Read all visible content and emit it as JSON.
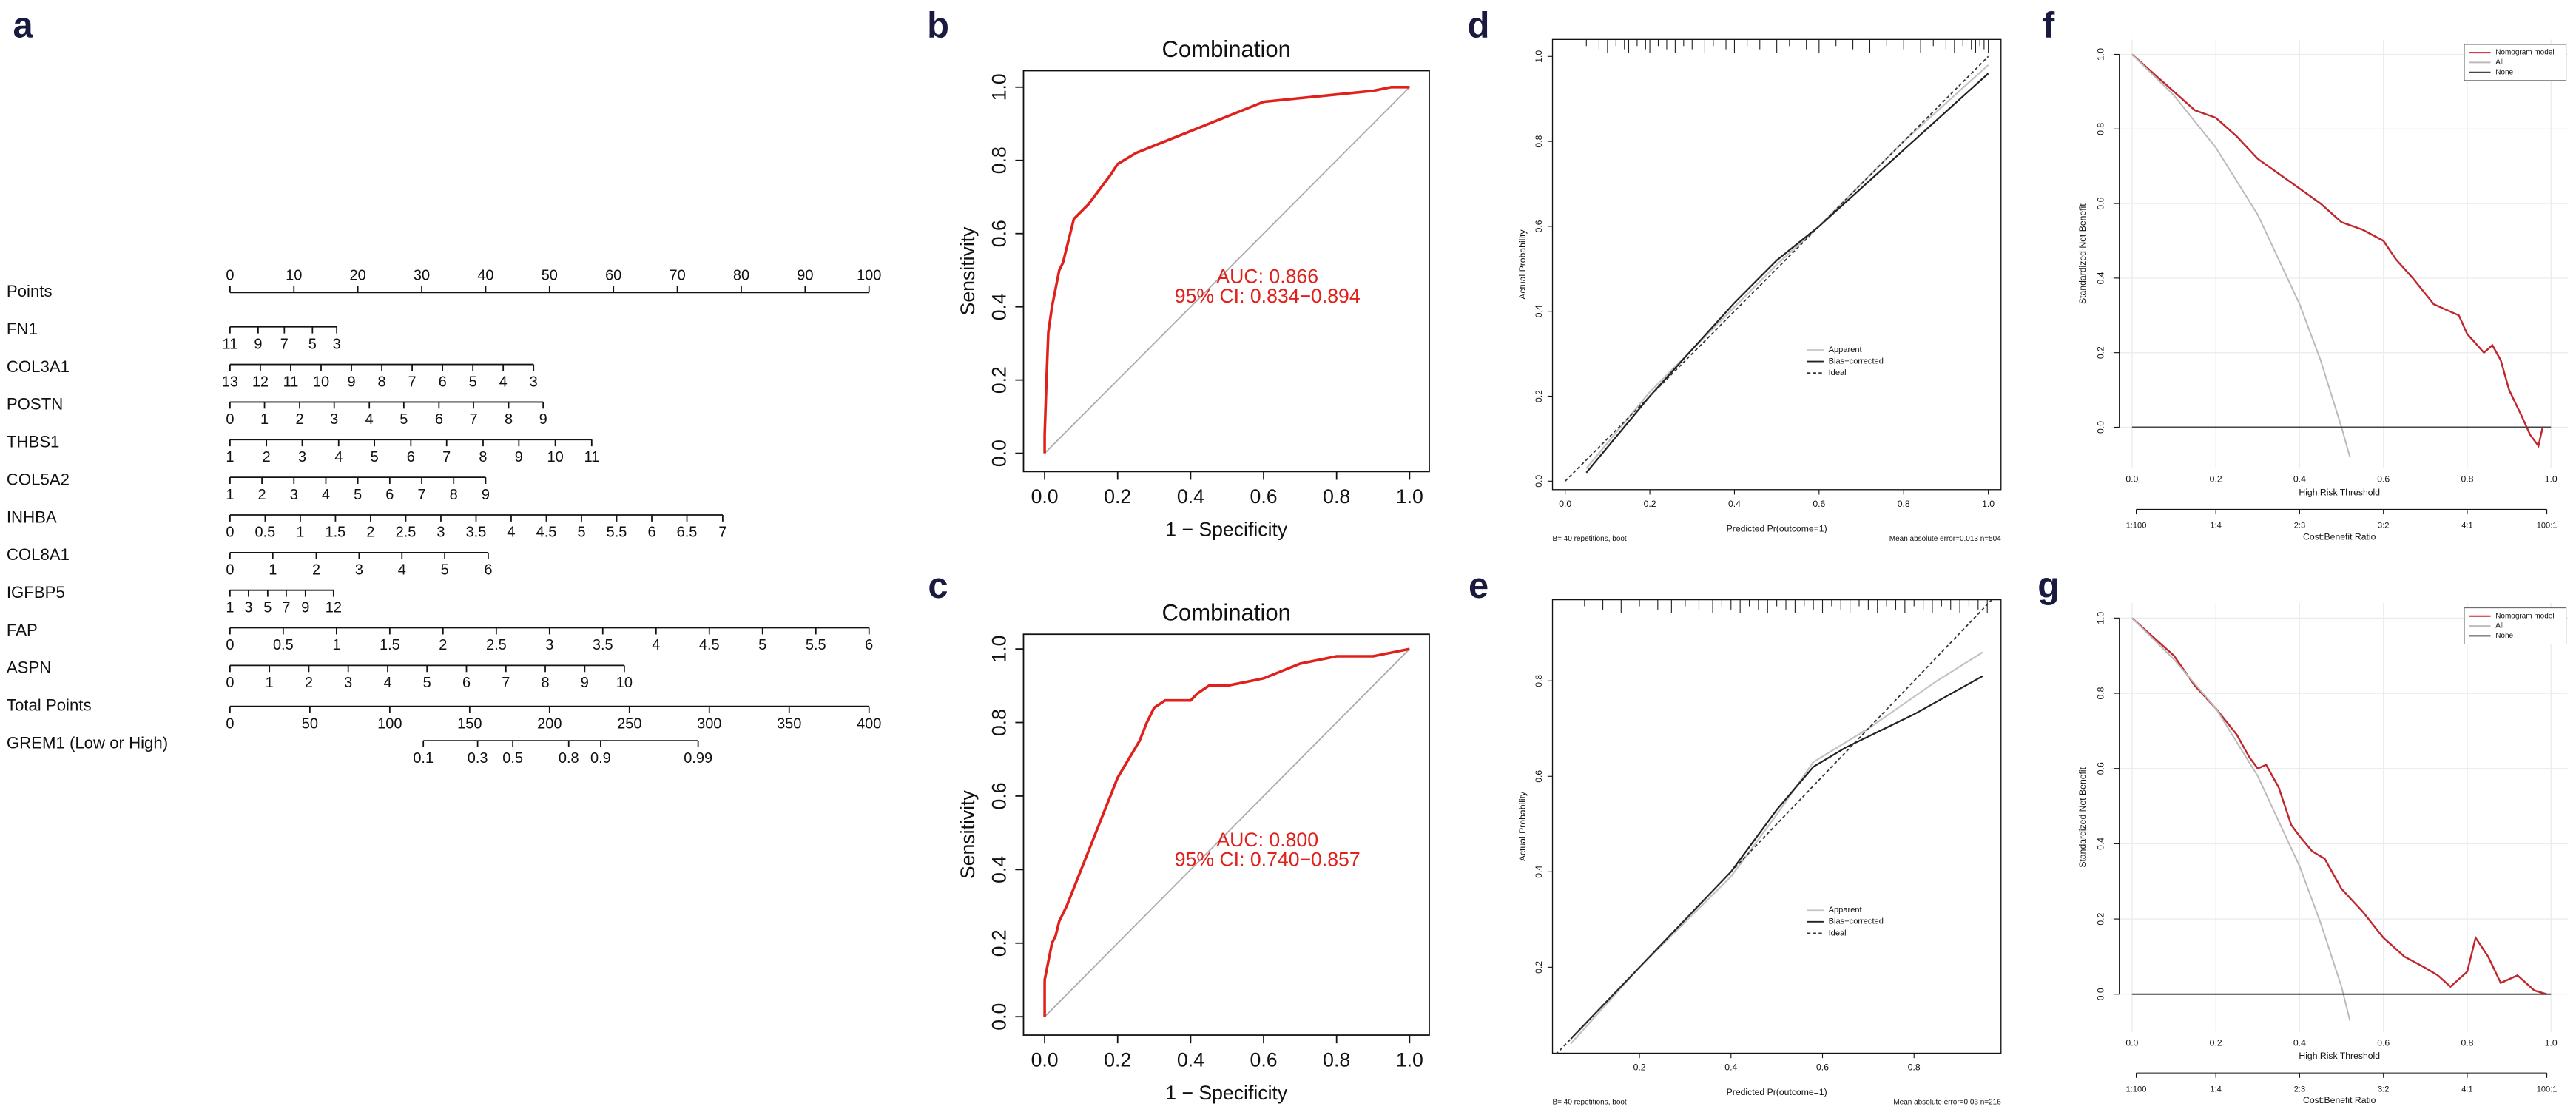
{
  "chart_data": [
    {
      "type": "nomogram",
      "panel_label": "a",
      "rows": [
        {
          "name": "Points",
          "xlim": [
            0,
            100
          ],
          "ticks": [
            0,
            10,
            20,
            30,
            40,
            50,
            60,
            70,
            80,
            90,
            100
          ]
        },
        {
          "name": "FN1",
          "ticks": [
            11,
            9,
            7,
            5,
            3
          ],
          "tick_points": [
            0,
            4.4,
            8.5,
            12.9,
            16.7
          ]
        },
        {
          "name": "COL3A1",
          "ticks": [
            13,
            12,
            11,
            10,
            9,
            8,
            7,
            6,
            5,
            4,
            3
          ],
          "tick_points": [
            0,
            4.75,
            9.5,
            14.25,
            19,
            23.75,
            28.5,
            33.25,
            38,
            42.75,
            47.5
          ]
        },
        {
          "name": "POSTN",
          "ticks": [
            0,
            1,
            2,
            3,
            4,
            5,
            6,
            7,
            8,
            9
          ],
          "tick_points": [
            0,
            5.4,
            10.9,
            16.3,
            21.8,
            27.2,
            32.7,
            38.1,
            43.6,
            49.0
          ]
        },
        {
          "name": "THBS1",
          "ticks": [
            1,
            2,
            3,
            4,
            5,
            6,
            7,
            8,
            9,
            10,
            11
          ],
          "tick_points": [
            0,
            5.7,
            11.3,
            17,
            22.6,
            28.3,
            33.9,
            39.6,
            45.2,
            50.9,
            56.6
          ]
        },
        {
          "name": "COL5A2",
          "ticks": [
            1,
            2,
            3,
            4,
            5,
            6,
            7,
            8,
            9
          ],
          "tick_points": [
            0,
            5,
            10,
            15,
            20,
            25,
            30,
            35,
            40
          ]
        },
        {
          "name": "INHBA",
          "ticks": [
            0,
            0.5,
            1,
            1.5,
            2,
            2.5,
            3,
            3.5,
            4,
            4.5,
            5,
            5.5,
            6,
            6.5,
            7
          ],
          "tick_points": [
            0,
            5.5,
            11,
            16.5,
            22,
            27.5,
            33,
            38.5,
            44,
            49.5,
            55,
            60.5,
            66,
            71.5,
            77.1
          ]
        },
        {
          "name": "COL8A1",
          "ticks": [
            0,
            1,
            2,
            3,
            4,
            5,
            6
          ],
          "tick_points": [
            0,
            6.7,
            13.5,
            20.2,
            26.9,
            33.6,
            40.4
          ]
        },
        {
          "name": "IGFBP5",
          "ticks": [
            1,
            3,
            5,
            7,
            9,
            12
          ],
          "tick_points": [
            0,
            2.9,
            5.9,
            8.8,
            11.8,
            16.2
          ]
        },
        {
          "name": "FAP",
          "ticks": [
            0,
            0.5,
            1,
            1.5,
            2,
            2.5,
            3,
            3.5,
            4,
            4.5,
            5,
            5.5,
            6
          ],
          "tick_points": [
            0,
            8.33,
            16.67,
            25,
            33.33,
            41.67,
            50,
            58.33,
            66.67,
            75,
            83.33,
            91.67,
            100
          ]
        },
        {
          "name": "ASPN",
          "ticks": [
            0,
            1,
            2,
            3,
            4,
            5,
            6,
            7,
            8,
            9,
            10
          ],
          "tick_points": [
            0,
            6.17,
            12.33,
            18.5,
            24.67,
            30.83,
            37,
            43.17,
            49.33,
            55.5,
            61.7
          ]
        },
        {
          "name": "Total Points",
          "xlim": [
            0,
            400
          ],
          "ticks": [
            0,
            50,
            100,
            150,
            200,
            250,
            300,
            350,
            400
          ]
        },
        {
          "name": "GREM1 (Low or High)",
          "ticks": [
            0.1,
            0.3,
            0.5,
            0.8,
            0.9,
            0.99
          ],
          "tick_points": [
            121,
            155,
            177,
            212,
            232,
            293
          ]
        }
      ]
    },
    {
      "type": "roc",
      "panel_label": "b",
      "title": "Combination",
      "x_label": "1 − Specificity",
      "y_label": "Sensitivity",
      "xlim": [
        -0.058,
        1.054
      ],
      "ylim": [
        -0.05,
        1.045
      ],
      "xticks": [
        {
          "value": 0,
          "label": "0.0"
        },
        0.2,
        0.4,
        0.6,
        0.8,
        {
          "value": 1,
          "label": "1.0"
        }
      ],
      "yticks": [
        {
          "value": 0,
          "label": "0.0"
        },
        0.2,
        0.4,
        0.6,
        0.8,
        {
          "value": 1,
          "label": "1.0"
        }
      ],
      "annotations": [
        "AUC: 0.866",
        "95% CI: 0.834−0.894"
      ],
      "annotation_color": "#e0201b",
      "reference_color": "#aaaaaa",
      "series": [
        {
          "color": "#e0201b",
          "x": [
            0,
            0,
            0.005,
            0.01,
            0.02,
            0.03,
            0.04,
            0.05,
            0.06,
            0.07,
            0.08,
            0.1,
            0.12,
            0.15,
            0.18,
            0.2,
            0.25,
            0.3,
            0.35,
            0.4,
            0.45,
            0.5,
            0.55,
            0.6,
            0.7,
            0.8,
            0.9,
            0.95,
            1
          ],
          "values": [
            0,
            0.05,
            0.2,
            0.33,
            0.4,
            0.45,
            0.5,
            0.52,
            0.56,
            0.6,
            0.64,
            0.66,
            0.68,
            0.72,
            0.76,
            0.79,
            0.82,
            0.84,
            0.86,
            0.88,
            0.9,
            0.92,
            0.94,
            0.96,
            0.97,
            0.98,
            0.99,
            1.0,
            1.0
          ]
        }
      ]
    },
    {
      "type": "roc",
      "panel_label": "c",
      "title": "Combination",
      "x_label": "1 − Specificity",
      "y_label": "Sensitivity",
      "xlim": [
        -0.058,
        1.054
      ],
      "ylim": [
        -0.05,
        1.04
      ],
      "xticks": [
        {
          "value": 0,
          "label": "0.0"
        },
        0.2,
        0.4,
        0.6,
        0.8,
        {
          "value": 1,
          "label": "1.0"
        }
      ],
      "yticks": [
        {
          "value": 0,
          "label": "0.0"
        },
        0.2,
        0.4,
        0.6,
        0.8,
        {
          "value": 1,
          "label": "1.0"
        }
      ],
      "annotations": [
        "AUC: 0.800",
        "95% CI: 0.740−0.857"
      ],
      "annotation_color": "#e0201b",
      "reference_color": "#aaaaaa",
      "series": [
        {
          "color": "#e0201b",
          "x": [
            0,
            0,
            0.01,
            0.02,
            0.03,
            0.04,
            0.06,
            0.08,
            0.1,
            0.12,
            0.14,
            0.16,
            0.18,
            0.2,
            0.23,
            0.26,
            0.28,
            0.3,
            0.33,
            0.4,
            0.42,
            0.45,
            0.5,
            0.55,
            0.6,
            0.7,
            0.8,
            0.9,
            0.95,
            1
          ],
          "values": [
            0,
            0.1,
            0.15,
            0.2,
            0.22,
            0.26,
            0.3,
            0.35,
            0.4,
            0.45,
            0.5,
            0.55,
            0.6,
            0.65,
            0.7,
            0.75,
            0.8,
            0.84,
            0.86,
            0.86,
            0.88,
            0.9,
            0.9,
            0.91,
            0.92,
            0.96,
            0.98,
            0.98,
            0.99,
            1.0
          ]
        }
      ]
    },
    {
      "type": "calibration",
      "panel_label": "d",
      "x_label": "Predicted Pr(outcome=1)",
      "y_label": "Actual Probability",
      "note_left": "B= 40 repetitions, boot",
      "note_right": "Mean absolute error=0.013 n=504",
      "xlim": [
        -0.03,
        1.03
      ],
      "ylim": [
        -0.02,
        1.04
      ],
      "xticks": [
        {
          "value": 0,
          "label": "0.0"
        },
        0.2,
        0.4,
        0.6,
        0.8,
        {
          "value": 1,
          "label": "1.0"
        }
      ],
      "yticks": [
        {
          "value": 0,
          "label": "0.0"
        },
        0.2,
        0.4,
        0.6,
        0.8,
        {
          "value": 1,
          "label": "1.0"
        }
      ],
      "rug": [
        0.05,
        0.08,
        0.1,
        0.12,
        0.14,
        0.15,
        0.17,
        0.19,
        0.2,
        0.22,
        0.24,
        0.26,
        0.28,
        0.3,
        0.33,
        0.35,
        0.38,
        0.4,
        0.43,
        0.46,
        0.5,
        0.53,
        0.57,
        0.6,
        0.64,
        0.68,
        0.72,
        0.76,
        0.8,
        0.84,
        0.87,
        0.9,
        0.92,
        0.94,
        0.96,
        0.97,
        0.98,
        0.99,
        1.0
      ],
      "series": [
        {
          "name": "Apparent",
          "color": "#c4c4c4",
          "x": [
            0.05,
            0.2,
            0.4,
            0.5,
            0.6,
            0.8,
            1.0
          ],
          "values": [
            0.03,
            0.21,
            0.41,
            0.51,
            0.6,
            0.8,
            0.98
          ]
        },
        {
          "name": "Bias−corrected",
          "color": "#222222",
          "x": [
            0.05,
            0.2,
            0.4,
            0.5,
            0.6,
            0.8,
            1.0
          ],
          "values": [
            0.02,
            0.2,
            0.42,
            0.52,
            0.6,
            0.78,
            0.96
          ]
        },
        {
          "name": "Ideal",
          "color": "#333333",
          "dashed": true,
          "x": [
            0,
            1
          ],
          "values": [
            0,
            1
          ]
        }
      ]
    },
    {
      "type": "calibration",
      "panel_label": "e",
      "x_label": "Predicted Pr(outcome=1)",
      "y_label": "Actual Probability",
      "note_left": "B= 40 repetitions, boot",
      "note_right": "Mean absolute error=0.03 n=216",
      "xlim": [
        0.01,
        0.99
      ],
      "ylim": [
        0.02,
        0.97
      ],
      "xticks": [
        0.2,
        0.4,
        0.6,
        0.8
      ],
      "yticks": [
        0.2,
        0.4,
        0.6,
        0.8
      ],
      "rug": [
        0.08,
        0.12,
        0.16,
        0.2,
        0.24,
        0.27,
        0.3,
        0.33,
        0.36,
        0.38,
        0.4,
        0.42,
        0.44,
        0.46,
        0.48,
        0.5,
        0.52,
        0.54,
        0.56,
        0.58,
        0.6,
        0.62,
        0.64,
        0.66,
        0.68,
        0.7,
        0.72,
        0.74,
        0.76,
        0.78,
        0.8,
        0.82,
        0.84,
        0.86,
        0.88,
        0.9,
        0.92,
        0.94,
        0.96
      ],
      "series": [
        {
          "name": "Apparent",
          "color": "#c4c4c4",
          "x": [
            0.05,
            0.2,
            0.4,
            0.5,
            0.58,
            0.7,
            0.85,
            0.95
          ],
          "values": [
            0.04,
            0.2,
            0.39,
            0.52,
            0.63,
            0.7,
            0.8,
            0.86
          ]
        },
        {
          "name": "Bias−corrected",
          "color": "#222222",
          "x": [
            0.05,
            0.2,
            0.4,
            0.5,
            0.58,
            0.65,
            0.8,
            0.95
          ],
          "values": [
            0.05,
            0.2,
            0.4,
            0.53,
            0.62,
            0.66,
            0.73,
            0.81
          ]
        },
        {
          "name": "Ideal",
          "color": "#333333",
          "dashed": true,
          "x": [
            0,
            1
          ],
          "values": [
            0,
            1
          ]
        }
      ]
    },
    {
      "type": "dca",
      "panel_label": "f",
      "x_label": "High Risk Threshold",
      "y_label": "Standardized Net Benefit",
      "x2_label": "Cost:Benefit Ratio",
      "grid": true,
      "xlim": [
        -0.05,
        1.04
      ],
      "ylim": [
        -0.11,
        1.04
      ],
      "xticks": [
        {
          "value": 0,
          "label": "0.0"
        },
        0.2,
        0.4,
        0.6,
        0.8,
        {
          "value": 1,
          "label": "1.0"
        }
      ],
      "yticks": [
        {
          "value": 0,
          "label": "0.0"
        },
        0.2,
        0.4,
        0.6,
        0.8,
        {
          "value": 1,
          "label": "1.0"
        }
      ],
      "x2ticks": [
        {
          "value": 0.01,
          "label": "1:100"
        },
        {
          "value": 0.2,
          "label": "1:4"
        },
        {
          "value": 0.4,
          "label": "2:3"
        },
        {
          "value": 0.6,
          "label": "3:2"
        },
        {
          "value": 0.8,
          "label": "4:1"
        },
        {
          "value": 0.99,
          "label": "100:1"
        }
      ],
      "series": [
        {
          "name": "Nomogram model",
          "color": "#c0272d",
          "x": [
            0,
            0.05,
            0.1,
            0.15,
            0.2,
            0.25,
            0.3,
            0.35,
            0.4,
            0.45,
            0.5,
            0.55,
            0.6,
            0.63,
            0.67,
            0.72,
            0.78,
            0.8,
            0.84,
            0.86,
            0.88,
            0.9,
            0.93,
            0.95,
            0.97,
            0.98
          ],
          "values": [
            1.0,
            0.95,
            0.9,
            0.85,
            0.83,
            0.78,
            0.72,
            0.68,
            0.64,
            0.6,
            0.55,
            0.53,
            0.5,
            0.45,
            0.4,
            0.33,
            0.3,
            0.25,
            0.2,
            0.22,
            0.18,
            0.1,
            0.03,
            -0.02,
            -0.05,
            0.0
          ]
        },
        {
          "name": "All",
          "color": "#bbbbbb",
          "x": [
            0,
            0.1,
            0.2,
            0.3,
            0.4,
            0.45,
            0.5,
            0.52
          ],
          "values": [
            1.0,
            0.89,
            0.75,
            0.57,
            0.33,
            0.18,
            0.0,
            -0.08
          ]
        },
        {
          "name": "None",
          "color": "#444444",
          "x": [
            0,
            1
          ],
          "values": [
            0,
            0
          ]
        }
      ]
    },
    {
      "type": "dca",
      "panel_label": "g",
      "x_label": "High Risk Threshold",
      "y_label": "Standardized Net Benefit",
      "x2_label": "Cost:Benefit Ratio",
      "grid": true,
      "xlim": [
        -0.05,
        1.04
      ],
      "ylim": [
        -0.1,
        1.04
      ],
      "xticks": [
        {
          "value": 0,
          "label": "0.0"
        },
        0.2,
        0.4,
        0.6,
        0.8,
        {
          "value": 1,
          "label": "1.0"
        }
      ],
      "yticks": [
        {
          "value": 0,
          "label": "0.0"
        },
        0.2,
        0.4,
        0.6,
        0.8,
        {
          "value": 1,
          "label": "1.0"
        }
      ],
      "x2ticks": [
        {
          "value": 0.01,
          "label": "1:100"
        },
        {
          "value": 0.2,
          "label": "1:4"
        },
        {
          "value": 0.4,
          "label": "2:3"
        },
        {
          "value": 0.6,
          "label": "3:2"
        },
        {
          "value": 0.8,
          "label": "4:1"
        },
        {
          "value": 0.99,
          "label": "100:1"
        }
      ],
      "series": [
        {
          "name": "Nomogram model",
          "color": "#c0272d",
          "x": [
            0,
            0.05,
            0.1,
            0.15,
            0.2,
            0.25,
            0.28,
            0.3,
            0.32,
            0.35,
            0.38,
            0.4,
            0.43,
            0.46,
            0.5,
            0.55,
            0.6,
            0.65,
            0.7,
            0.73,
            0.76,
            0.8,
            0.82,
            0.85,
            0.88,
            0.92,
            0.96,
            0.99
          ],
          "values": [
            1.0,
            0.95,
            0.9,
            0.82,
            0.76,
            0.69,
            0.63,
            0.6,
            0.61,
            0.55,
            0.45,
            0.42,
            0.38,
            0.36,
            0.28,
            0.22,
            0.15,
            0.1,
            0.07,
            0.05,
            0.02,
            0.06,
            0.15,
            0.1,
            0.03,
            0.05,
            0.01,
            0.0
          ]
        },
        {
          "name": "All",
          "color": "#bbbbbb",
          "x": [
            0,
            0.1,
            0.2,
            0.3,
            0.4,
            0.45,
            0.5,
            0.52
          ],
          "values": [
            1.0,
            0.89,
            0.76,
            0.58,
            0.34,
            0.19,
            0.02,
            -0.07
          ]
        },
        {
          "name": "None",
          "color": "#444444",
          "x": [
            0,
            1
          ],
          "values": [
            0,
            0
          ]
        }
      ]
    }
  ]
}
